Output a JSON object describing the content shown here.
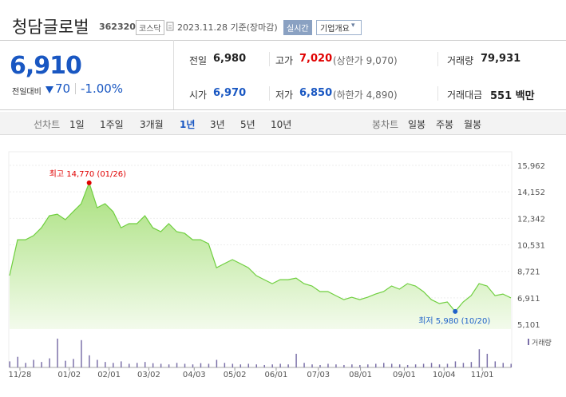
{
  "header": {
    "name": "청담글로벌",
    "code": "362320",
    "market": "코스닥",
    "date": "2023.11.28 기준(장마감)",
    "realtime": "실시간",
    "button": "기업개요"
  },
  "quote": {
    "price": "6,910",
    "change_label": "전일대비",
    "change": "70",
    "rate": "-1.00%"
  },
  "stats": [
    [
      {
        "label": "전일",
        "value": "6,980"
      },
      {
        "label": "고가",
        "value": "7,020",
        "extra": "(상한가 9,070)"
      },
      {
        "label": "거래량",
        "value": "79,931"
      }
    ],
    [
      {
        "label": "시가",
        "value": "6,970"
      },
      {
        "label": "저가",
        "value": "6,850",
        "extra": "(하한가 4,890)"
      },
      {
        "label": "거래대금",
        "value": "551 백만"
      }
    ]
  ],
  "tabs": {
    "line_label": "선차트",
    "periods": [
      "1일",
      "1주일",
      "3개월",
      "1년",
      "3년",
      "5년",
      "10년"
    ],
    "selected": 3,
    "candle_label": "봉차트",
    "candles": [
      "일봉",
      "주봉",
      "월봉"
    ]
  },
  "chart_data": {
    "type": "area",
    "color": "#6fcf3f",
    "ylim": [
      5101,
      15962
    ],
    "yticks": [
      {
        "value": 15962,
        "label": "15,962"
      },
      {
        "value": 14152,
        "label": "14,152"
      },
      {
        "value": 12342,
        "label": "12,342"
      },
      {
        "value": 10531,
        "label": "10,531"
      },
      {
        "value": 8721,
        "label": "8,721"
      },
      {
        "value": 6911,
        "label": "6,911"
      },
      {
        "value": 5101,
        "label": "5,101"
      }
    ],
    "xlim": [
      0,
      63
    ],
    "xticks": [
      {
        "value": 1.3,
        "label": "11/28"
      },
      {
        "value": 7.5,
        "label": "01/02"
      },
      {
        "value": 12.5,
        "label": "02/01"
      },
      {
        "value": 17.5,
        "label": "03/02"
      },
      {
        "value": 23.2,
        "label": "04/03"
      },
      {
        "value": 28.3,
        "label": "05/02"
      },
      {
        "value": 33.5,
        "label": "06/01"
      },
      {
        "value": 38.8,
        "label": "07/03"
      },
      {
        "value": 44.1,
        "label": "08/01"
      },
      {
        "value": 49.6,
        "label": "09/01"
      },
      {
        "value": 54.6,
        "label": "10/04"
      },
      {
        "value": 59.4,
        "label": "11/01"
      }
    ],
    "values": [
      8430,
      10880,
      10880,
      11160,
      11700,
      12520,
      12630,
      12250,
      12800,
      13340,
      14770,
      13070,
      13340,
      12800,
      11700,
      11980,
      11980,
      12520,
      11700,
      11430,
      11980,
      11430,
      11320,
      10880,
      10880,
      10610,
      8970,
      9250,
      9520,
      9250,
      8970,
      8430,
      8150,
      7880,
      8150,
      8150,
      8260,
      7880,
      7720,
      7340,
      7340,
      7060,
      6790,
      6950,
      6790,
      6950,
      7170,
      7340,
      7720,
      7500,
      7880,
      7720,
      7340,
      6790,
      6520,
      6630,
      5980,
      6630,
      7060,
      7880,
      7720,
      7060,
      7170,
      6910
    ],
    "annotations": [
      {
        "text": "최고 14,770 (01/26)",
        "x": 10,
        "y": 14770,
        "color": "#e00000"
      },
      {
        "text": "최저 5,980 (10/20)",
        "x": 56,
        "y": 5980,
        "color": "#1f62c9"
      }
    ],
    "volume": {
      "label": "거래량",
      "color": "#7a6fa8",
      "ylim": [
        0,
        100
      ],
      "values": [
        20,
        35,
        15,
        25,
        18,
        30,
        95,
        22,
        28,
        90,
        40,
        25,
        18,
        15,
        20,
        12,
        15,
        18,
        14,
        12,
        10,
        15,
        12,
        10,
        14,
        12,
        25,
        15,
        12,
        10,
        12,
        10,
        8,
        10,
        12,
        10,
        45,
        15,
        10,
        8,
        12,
        10,
        8,
        10,
        8,
        10,
        12,
        15,
        12,
        10,
        8,
        10,
        12,
        15,
        10,
        12,
        20,
        15,
        18,
        60,
        45,
        20,
        15,
        12
      ]
    }
  }
}
